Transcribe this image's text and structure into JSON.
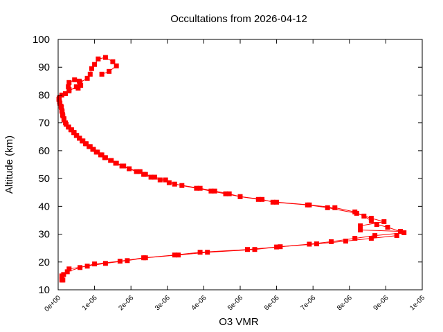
{
  "chart_data": {
    "type": "line",
    "title": "Occultations from 2026-04-12",
    "xlabel": "O3 VMR",
    "ylabel": "Altitude (km)",
    "xlim": [
      0,
      1e-05
    ],
    "ylim": [
      10,
      100
    ],
    "x_ticks": [
      {
        "value": 0,
        "label": "0e+00"
      },
      {
        "value": 1e-06,
        "label": "1e-06"
      },
      {
        "value": 2e-06,
        "label": "2e-06"
      },
      {
        "value": 3e-06,
        "label": "3e-06"
      },
      {
        "value": 4e-06,
        "label": "4e-06"
      },
      {
        "value": 5e-06,
        "label": "5e-06"
      },
      {
        "value": 6e-06,
        "label": "6e-06"
      },
      {
        "value": 7e-06,
        "label": "7e-06"
      },
      {
        "value": 8e-06,
        "label": "8e-06"
      },
      {
        "value": 9e-06,
        "label": "9e-06"
      },
      {
        "value": 1e-05,
        "label": "1e-05"
      }
    ],
    "y_ticks": [
      {
        "value": 10,
        "label": "10"
      },
      {
        "value": 20,
        "label": "20"
      },
      {
        "value": 30,
        "label": "30"
      },
      {
        "value": 40,
        "label": "40"
      },
      {
        "value": 50,
        "label": "50"
      },
      {
        "value": 60,
        "label": "60"
      },
      {
        "value": 70,
        "label": "70"
      },
      {
        "value": 80,
        "label": "80"
      },
      {
        "value": 90,
        "label": "90"
      },
      {
        "value": 100,
        "label": "100"
      }
    ],
    "grid": false,
    "legend": "none",
    "line_color": "#ff0000",
    "marker": "square",
    "series": [
      {
        "points": [
          [
            1.3e-07,
            13.5
          ],
          [
            1e-07,
            15.0
          ],
          [
            2.5e-07,
            16.5
          ],
          [
            6e-07,
            18.0
          ],
          [
            1e-06,
            19.3
          ],
          [
            1.7e-06,
            20.3
          ],
          [
            2.35e-06,
            21.5
          ],
          [
            3.2e-06,
            22.5
          ],
          [
            3.9e-06,
            23.5
          ],
          [
            5.2e-06,
            24.5
          ],
          [
            6e-06,
            25.4
          ],
          [
            6.9e-06,
            26.4
          ],
          [
            7.5e-06,
            27.3
          ],
          [
            8.15e-06,
            28.5
          ],
          [
            8.7e-06,
            29.5
          ],
          [
            9.5e-06,
            30.5
          ],
          [
            9.05e-06,
            32.5
          ],
          [
            8.75e-06,
            33.5
          ],
          [
            8.6e-06,
            34.8
          ],
          [
            8.4e-06,
            36.5
          ],
          [
            8.15e-06,
            38.0
          ],
          [
            7.6e-06,
            39.5
          ],
          [
            6.9e-06,
            40.5
          ],
          [
            6e-06,
            41.5
          ],
          [
            5.5e-06,
            42.5
          ],
          [
            5e-06,
            43.5
          ],
          [
            4.6e-06,
            44.5
          ],
          [
            4.2e-06,
            45.5
          ],
          [
            3.8e-06,
            46.5
          ],
          [
            3.4e-06,
            47.5
          ],
          [
            3.05e-06,
            48.5
          ],
          [
            2.8e-06,
            49.5
          ],
          [
            2.55e-06,
            50.5
          ],
          [
            2.35e-06,
            51.5
          ],
          [
            2.15e-06,
            52.5
          ],
          [
            1.95e-06,
            53.5
          ],
          [
            1.75e-06,
            54.5
          ],
          [
            1.58e-06,
            55.5
          ],
          [
            1.44e-06,
            56.5
          ],
          [
            1.3e-06,
            57.5
          ],
          [
            1.17e-06,
            58.5
          ],
          [
            1.05e-06,
            59.5
          ],
          [
            9.5e-07,
            60.5
          ],
          [
            8.5e-07,
            61.5
          ],
          [
            7.5e-07,
            62.5
          ],
          [
            6.6e-07,
            63.5
          ],
          [
            5.8e-07,
            64.5
          ],
          [
            5e-07,
            65.5
          ],
          [
            4.3e-07,
            66.5
          ],
          [
            3.7e-07,
            67.5
          ],
          [
            2.9e-07,
            68.5
          ],
          [
            2.2e-07,
            69.5
          ],
          [
            1.6e-07,
            71.0
          ],
          [
            1.3e-07,
            72.5
          ],
          [
            1.1e-07,
            74.0
          ],
          [
            9e-08,
            75.5
          ],
          [
            5e-08,
            77.0
          ],
          [
            2e-08,
            78.5
          ],
          [
            1e-07,
            80.0
          ],
          [
            3e-07,
            81.5
          ],
          [
            5e-07,
            83.0
          ],
          [
            6e-07,
            84.5
          ],
          [
            8e-07,
            86.0
          ],
          [
            8.8e-07,
            87.5
          ],
          [
            9.2e-07,
            89.5
          ],
          [
            1e-06,
            91.0
          ],
          [
            1.1e-06,
            93.0
          ],
          [
            1.3e-06,
            93.5
          ],
          [
            1.5e-06,
            92.0
          ],
          [
            1.6e-06,
            90.5
          ],
          [
            1.4e-06,
            88.5
          ],
          [
            1.2e-06,
            87.5
          ]
        ]
      },
      {
        "points": [
          [
            1e-07,
            13.5
          ],
          [
            1.5e-07,
            15.5
          ],
          [
            3e-07,
            17.5
          ],
          [
            8e-07,
            18.5
          ],
          [
            1.3e-06,
            19.5
          ],
          [
            1.9e-06,
            20.5
          ],
          [
            2.4e-06,
            21.5
          ],
          [
            3.3e-06,
            22.5
          ],
          [
            4.1e-06,
            23.5
          ],
          [
            5.4e-06,
            24.5
          ],
          [
            6.1e-06,
            25.5
          ],
          [
            7.1e-06,
            26.5
          ],
          [
            7.9e-06,
            27.5
          ],
          [
            8.6e-06,
            28.5
          ],
          [
            9.3e-06,
            29.5
          ],
          [
            9.4e-06,
            31.0
          ],
          [
            8.3e-06,
            31.5
          ],
          [
            8.3e-06,
            33.0
          ],
          [
            8.95e-06,
            34.5
          ],
          [
            8.6e-06,
            35.7
          ],
          [
            8.2e-06,
            37.5
          ],
          [
            7.4e-06,
            39.5
          ],
          [
            6.85e-06,
            40.5
          ],
          [
            5.9e-06,
            41.5
          ],
          [
            5.6e-06,
            42.5
          ],
          [
            5e-06,
            43.5
          ],
          [
            4.7e-06,
            44.5
          ],
          [
            4.3e-06,
            45.5
          ],
          [
            3.9e-06,
            46.5
          ],
          [
            3.2e-06,
            48.0
          ],
          [
            2.95e-06,
            49.5
          ],
          [
            2.65e-06,
            50.5
          ],
          [
            2.4e-06,
            51.5
          ],
          [
            2.25e-06,
            52.5
          ],
          [
            1.95e-06,
            53.5
          ],
          [
            1.8e-06,
            54.5
          ],
          [
            1.6e-06,
            55.5
          ],
          [
            1.46e-06,
            56.5
          ],
          [
            1.28e-06,
            57.5
          ],
          [
            1.2e-06,
            58.5
          ],
          [
            1.08e-06,
            59.5
          ],
          [
            9.7e-07,
            60.5
          ],
          [
            8.8e-07,
            61.5
          ],
          [
            7.7e-07,
            62.5
          ],
          [
            6.8e-07,
            63.5
          ],
          [
            5.9e-07,
            64.5
          ],
          [
            5.1e-07,
            65.5
          ],
          [
            4.4e-07,
            66.5
          ],
          [
            3.5e-07,
            67.5
          ],
          [
            2.8e-07,
            68.5
          ],
          [
            2e-07,
            70.0
          ],
          [
            1.6e-07,
            71.5
          ],
          [
            1.2e-07,
            73.0
          ],
          [
            1e-07,
            74.5
          ],
          [
            8e-08,
            76.0
          ],
          [
            4e-08,
            77.5
          ],
          [
            3e-08,
            79.0
          ],
          [
            2e-07,
            80.5
          ],
          [
            3e-07,
            82.0
          ],
          [
            5.5e-07,
            82.5
          ],
          [
            6.2e-07,
            83.5
          ],
          [
            5.8e-07,
            85.0
          ],
          [
            4.5e-07,
            85.5
          ],
          [
            3e-07,
            84.5
          ],
          [
            2.8e-07,
            83.0
          ]
        ]
      }
    ]
  }
}
